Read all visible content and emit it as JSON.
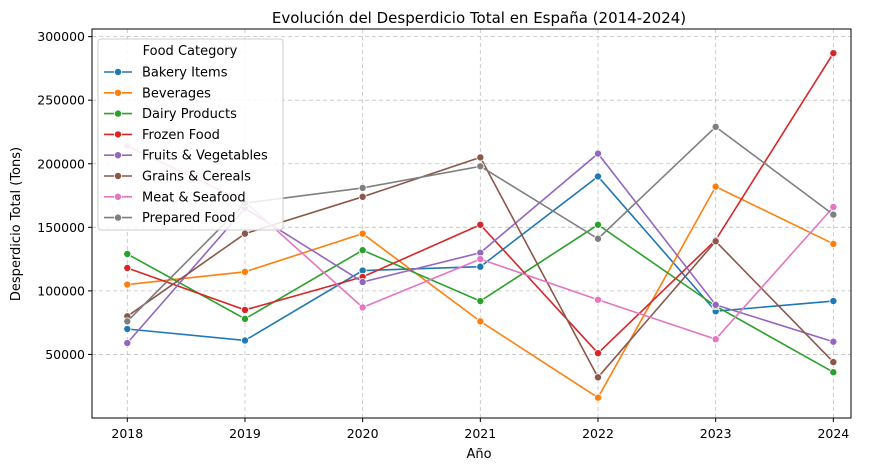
{
  "chart_data": {
    "type": "line",
    "title": "Evolución del Desperdicio Total en España (2014-2024)",
    "xlabel": "Año",
    "ylabel": "Desperdicio Total (Tons)",
    "x": [
      2018,
      2019,
      2020,
      2021,
      2022,
      2023,
      2024
    ],
    "x_ticks": [
      "2018",
      "2019",
      "2020",
      "2021",
      "2022",
      "2023",
      "2024"
    ],
    "y_ticks": [
      "50000",
      "100000",
      "150000",
      "200000",
      "250000",
      "300000"
    ],
    "y_tick_values": [
      50000,
      100000,
      150000,
      200000,
      250000,
      300000
    ],
    "xlim": [
      2017.7,
      2024.15
    ],
    "ylim": [
      0,
      306000
    ],
    "grid": true,
    "legend": {
      "title": "Food Category",
      "placement": "top-left"
    },
    "series": [
      {
        "name": "Bakery Items",
        "color": "#1f77b4",
        "values": [
          70000,
          61000,
          116000,
          119000,
          190000,
          84000,
          92000
        ]
      },
      {
        "name": "Beverages",
        "color": "#ff7f0e",
        "values": [
          105000,
          115000,
          145000,
          76000,
          16000,
          182000,
          137000
        ]
      },
      {
        "name": "Dairy Products",
        "color": "#2ca02c",
        "values": [
          129000,
          78000,
          132000,
          92000,
          152000,
          88000,
          36000
        ]
      },
      {
        "name": "Frozen Food",
        "color": "#d62728",
        "values": [
          118000,
          85000,
          111000,
          152000,
          51000,
          140000,
          287000
        ]
      },
      {
        "name": "Fruits & Vegetables",
        "color": "#9467bd",
        "values": [
          59000,
          165000,
          107000,
          130000,
          208000,
          89000,
          60000
        ]
      },
      {
        "name": "Grains & Cereals",
        "color": "#8c564b",
        "values": [
          80000,
          145000,
          174000,
          205000,
          32000,
          139000,
          44000
        ]
      },
      {
        "name": "Meat & Seafood",
        "color": "#e377c2",
        "values": [
          214000,
          170000,
          87000,
          125000,
          93000,
          62000,
          166000
        ]
      },
      {
        "name": "Prepared Food",
        "color": "#7f7f7f",
        "values": [
          76000,
          169000,
          181000,
          198000,
          141000,
          229000,
          160000
        ]
      }
    ]
  }
}
